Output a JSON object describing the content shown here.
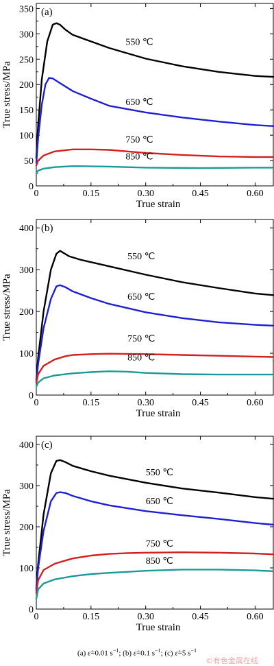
{
  "chart_data": [
    {
      "type": "line",
      "panel_label": "(a)",
      "xlabel": "True strain",
      "ylabel": "True stress/MPa",
      "xlim": [
        0,
        0.65
      ],
      "ylim": [
        0,
        360
      ],
      "x_ticks": [
        0,
        0.15,
        0.3,
        0.45,
        0.6
      ],
      "x_tick_labels": [
        "0",
        "0.15",
        "0.30",
        "0.45",
        "0.60"
      ],
      "y_ticks": [
        0,
        50,
        100,
        150,
        200,
        250,
        300,
        350
      ],
      "y_tick_labels": [
        "0",
        "50",
        "100",
        "150",
        "200",
        "250",
        "300",
        "350"
      ],
      "grid": false,
      "series": [
        {
          "name": "550 ℃",
          "color": "#000000",
          "x": [
            0,
            0.005,
            0.015,
            0.03,
            0.045,
            0.055,
            0.065,
            0.08,
            0.1,
            0.15,
            0.2,
            0.3,
            0.4,
            0.5,
            0.6,
            0.65
          ],
          "y": [
            55,
            120,
            210,
            285,
            318,
            321,
            318,
            308,
            298,
            285,
            272,
            251,
            236,
            225,
            217,
            215
          ]
        },
        {
          "name": "650 ℃",
          "color": "#1f1fd2",
          "x": [
            0,
            0.005,
            0.015,
            0.025,
            0.035,
            0.045,
            0.06,
            0.08,
            0.1,
            0.15,
            0.2,
            0.3,
            0.4,
            0.5,
            0.6,
            0.65
          ],
          "y": [
            45,
            95,
            160,
            200,
            213,
            212,
            205,
            196,
            187,
            172,
            158,
            145,
            135,
            127,
            120,
            118
          ]
        },
        {
          "name": "750 ℃",
          "color": "#d21f1f",
          "x": [
            0,
            0.005,
            0.02,
            0.05,
            0.1,
            0.15,
            0.2,
            0.25,
            0.3,
            0.4,
            0.5,
            0.6,
            0.65
          ],
          "y": [
            40,
            50,
            60,
            68,
            72,
            72,
            71,
            68,
            65,
            61,
            58,
            57,
            57
          ]
        },
        {
          "name": "850 ℃",
          "color": "#1a9a96",
          "x": [
            0,
            0.005,
            0.02,
            0.05,
            0.1,
            0.2,
            0.3,
            0.45,
            0.6,
            0.65
          ],
          "y": [
            25,
            30,
            34,
            37,
            39,
            38,
            36,
            35,
            36,
            36
          ]
        }
      ],
      "annotations": [
        {
          "text": "550 ℃",
          "x": 0.245,
          "y": 278
        },
        {
          "text": "650 ℃",
          "x": 0.245,
          "y": 160
        },
        {
          "text": "750 ℃",
          "x": 0.245,
          "y": 85
        },
        {
          "text": "850 ℃",
          "x": 0.245,
          "y": 52
        }
      ]
    },
    {
      "type": "line",
      "panel_label": "(b)",
      "xlabel": "True strain",
      "ylabel": "True stress/MPa",
      "xlim": [
        0,
        0.65
      ],
      "ylim": [
        0,
        420
      ],
      "x_ticks": [
        0,
        0.15,
        0.3,
        0.45,
        0.6
      ],
      "x_tick_labels": [
        "0",
        "0.15",
        "0.30",
        "0.45",
        "0.60"
      ],
      "y_ticks": [
        0,
        100,
        200,
        300,
        400
      ],
      "y_tick_labels": [
        "0",
        "100",
        "200",
        "300",
        "400"
      ],
      "grid": false,
      "series": [
        {
          "name": "550 ℃",
          "color": "#000000",
          "x": [
            0,
            0.005,
            0.02,
            0.04,
            0.055,
            0.065,
            0.075,
            0.09,
            0.12,
            0.15,
            0.2,
            0.3,
            0.4,
            0.5,
            0.6,
            0.65
          ],
          "y": [
            35,
            90,
            200,
            300,
            338,
            345,
            340,
            332,
            324,
            318,
            308,
            288,
            270,
            256,
            243,
            239
          ]
        },
        {
          "name": "650 ℃",
          "color": "#1f1fd2",
          "x": [
            0,
            0.005,
            0.02,
            0.04,
            0.055,
            0.065,
            0.08,
            0.1,
            0.15,
            0.2,
            0.3,
            0.4,
            0.5,
            0.6,
            0.65
          ],
          "y": [
            30,
            75,
            160,
            230,
            260,
            263,
            258,
            248,
            232,
            218,
            198,
            184,
            174,
            168,
            166
          ]
        },
        {
          "name": "750 ℃",
          "color": "#d21f1f",
          "x": [
            0,
            0.005,
            0.02,
            0.05,
            0.08,
            0.1,
            0.15,
            0.2,
            0.3,
            0.4,
            0.5,
            0.6,
            0.65
          ],
          "y": [
            30,
            50,
            70,
            85,
            93,
            96,
            98,
            99,
            98,
            96,
            94,
            92,
            91
          ]
        },
        {
          "name": "850 ℃",
          "color": "#1a9a96",
          "x": [
            0,
            0.005,
            0.02,
            0.05,
            0.1,
            0.15,
            0.2,
            0.25,
            0.3,
            0.4,
            0.5,
            0.6,
            0.65
          ],
          "y": [
            20,
            30,
            40,
            47,
            52,
            55,
            57,
            56,
            53,
            50,
            49,
            49,
            49
          ]
        }
      ],
      "annotations": [
        {
          "text": "550 ℃",
          "x": 0.25,
          "y": 325
        },
        {
          "text": "650 ℃",
          "x": 0.25,
          "y": 228
        },
        {
          "text": "750 ℃",
          "x": 0.25,
          "y": 128
        },
        {
          "text": "850 ℃",
          "x": 0.25,
          "y": 83
        }
      ]
    },
    {
      "type": "line",
      "panel_label": "(c)",
      "xlabel": "True strain",
      "ylabel": "True stress/MPa",
      "xlim": [
        0,
        0.65
      ],
      "ylim": [
        0,
        420
      ],
      "x_ticks": [
        0,
        0.15,
        0.3,
        0.45,
        0.6
      ],
      "x_tick_labels": [
        "0",
        "0.15",
        "0.30",
        "0.45",
        "0.60"
      ],
      "y_ticks": [
        0,
        100,
        200,
        300,
        400
      ],
      "y_tick_labels": [
        "0",
        "100",
        "200",
        "300",
        "400"
      ],
      "grid": false,
      "series": [
        {
          "name": "550 ℃",
          "color": "#000000",
          "x": [
            0,
            0.005,
            0.02,
            0.04,
            0.055,
            0.065,
            0.08,
            0.1,
            0.15,
            0.2,
            0.3,
            0.4,
            0.5,
            0.6,
            0.65
          ],
          "y": [
            50,
            110,
            230,
            330,
            360,
            362,
            357,
            348,
            335,
            324,
            307,
            293,
            283,
            272,
            268
          ]
        },
        {
          "name": "650 ℃",
          "color": "#1f1fd2",
          "x": [
            0,
            0.005,
            0.02,
            0.04,
            0.055,
            0.065,
            0.08,
            0.1,
            0.15,
            0.2,
            0.3,
            0.4,
            0.5,
            0.6,
            0.65
          ],
          "y": [
            45,
            100,
            190,
            262,
            282,
            284,
            282,
            275,
            262,
            252,
            238,
            228,
            219,
            209,
            205
          ]
        },
        {
          "name": "750 ℃",
          "color": "#d21f1f",
          "x": [
            0,
            0.005,
            0.02,
            0.05,
            0.08,
            0.1,
            0.15,
            0.2,
            0.25,
            0.3,
            0.4,
            0.5,
            0.6,
            0.65
          ],
          "y": [
            40,
            70,
            95,
            110,
            118,
            123,
            130,
            134,
            136,
            137,
            138,
            137,
            135,
            133
          ]
        },
        {
          "name": "850 ℃",
          "color": "#1a9a96",
          "x": [
            0,
            0.005,
            0.02,
            0.05,
            0.1,
            0.15,
            0.2,
            0.3,
            0.4,
            0.5,
            0.6,
            0.65
          ],
          "y": [
            25,
            48,
            62,
            72,
            80,
            85,
            88,
            93,
            96,
            96,
            94,
            92
          ]
        }
      ],
      "annotations": [
        {
          "text": "550 ℃",
          "x": 0.3,
          "y": 325
        },
        {
          "text": "650 ℃",
          "x": 0.3,
          "y": 255
        },
        {
          "text": "750 ℃",
          "x": 0.3,
          "y": 152
        },
        {
          "text": "850 ℃",
          "x": 0.3,
          "y": 110
        }
      ]
    }
  ],
  "caption": {
    "a_label": "(a)",
    "a_value": "=0.01 s",
    "b_label": "(b)",
    "b_value": "=0.1 s",
    "c_label": "(c)",
    "c_value": "=5 s",
    "rate_symbol": "ε̇",
    "exponent": "−1",
    "separator": ";"
  },
  "watermark": "©有色金属在线"
}
